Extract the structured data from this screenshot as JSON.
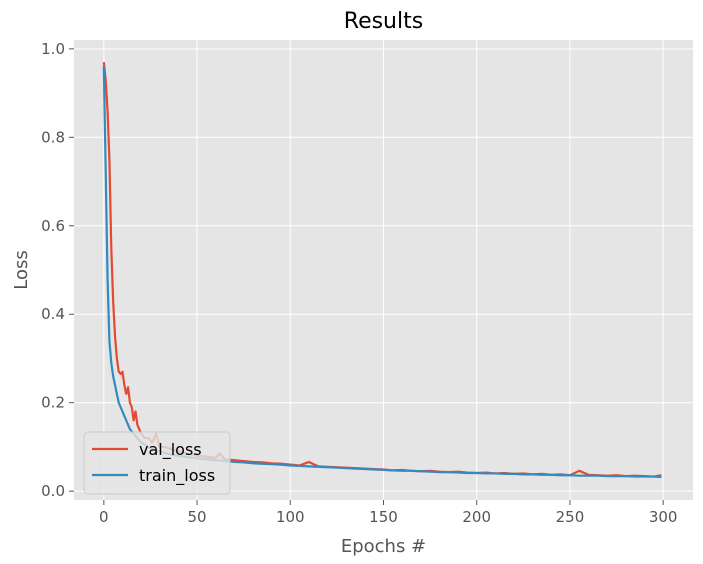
{
  "chart_data": {
    "type": "line",
    "title": "Results",
    "xlabel": "Epochs #",
    "ylabel": "Loss",
    "xlim": [
      -16,
      316
    ],
    "ylim": [
      -0.02,
      1.02
    ],
    "xticks": [
      0,
      50,
      100,
      150,
      200,
      250,
      300
    ],
    "yticks": [
      0.0,
      0.2,
      0.4,
      0.6,
      0.8,
      1.0
    ],
    "xtick_labels": [
      "0",
      "50",
      "100",
      "150",
      "200",
      "250",
      "300"
    ],
    "ytick_labels": [
      "0.0",
      "0.2",
      "0.4",
      "0.6",
      "0.8",
      "1.0"
    ],
    "grid": true,
    "legend_position": "bottom-left",
    "series": [
      {
        "name": "val_loss",
        "color": "#E24A33",
        "points": [
          [
            0,
            0.97
          ],
          [
            1,
            0.93
          ],
          [
            2,
            0.86
          ],
          [
            3,
            0.75
          ],
          [
            4,
            0.55
          ],
          [
            5,
            0.43
          ],
          [
            6,
            0.35
          ],
          [
            7,
            0.3
          ],
          [
            8,
            0.27
          ],
          [
            9,
            0.265
          ],
          [
            10,
            0.27
          ],
          [
            11,
            0.24
          ],
          [
            12,
            0.22
          ],
          [
            13,
            0.235
          ],
          [
            14,
            0.2
          ],
          [
            15,
            0.19
          ],
          [
            16,
            0.16
          ],
          [
            17,
            0.18
          ],
          [
            18,
            0.15
          ],
          [
            19,
            0.14
          ],
          [
            20,
            0.13
          ],
          [
            22,
            0.12
          ],
          [
            24,
            0.12
          ],
          [
            26,
            0.11
          ],
          [
            28,
            0.13
          ],
          [
            30,
            0.1
          ],
          [
            33,
            0.1
          ],
          [
            36,
            0.095
          ],
          [
            40,
            0.09
          ],
          [
            45,
            0.085
          ],
          [
            50,
            0.08
          ],
          [
            55,
            0.078
          ],
          [
            60,
            0.075
          ],
          [
            62,
            0.085
          ],
          [
            65,
            0.072
          ],
          [
            70,
            0.07
          ],
          [
            75,
            0.068
          ],
          [
            80,
            0.066
          ],
          [
            85,
            0.065
          ],
          [
            90,
            0.063
          ],
          [
            95,
            0.062
          ],
          [
            100,
            0.06
          ],
          [
            105,
            0.058
          ],
          [
            110,
            0.066
          ],
          [
            115,
            0.056
          ],
          [
            120,
            0.055
          ],
          [
            125,
            0.054
          ],
          [
            130,
            0.053
          ],
          [
            135,
            0.052
          ],
          [
            140,
            0.051
          ],
          [
            145,
            0.05
          ],
          [
            150,
            0.049
          ],
          [
            155,
            0.047
          ],
          [
            160,
            0.048
          ],
          [
            165,
            0.046
          ],
          [
            170,
            0.045
          ],
          [
            175,
            0.046
          ],
          [
            180,
            0.044
          ],
          [
            185,
            0.043
          ],
          [
            190,
            0.044
          ],
          [
            195,
            0.042
          ],
          [
            200,
            0.041
          ],
          [
            205,
            0.042
          ],
          [
            210,
            0.04
          ],
          [
            215,
            0.041
          ],
          [
            220,
            0.039
          ],
          [
            225,
            0.04
          ],
          [
            230,
            0.038
          ],
          [
            235,
            0.039
          ],
          [
            240,
            0.037
          ],
          [
            245,
            0.038
          ],
          [
            250,
            0.036
          ],
          [
            255,
            0.046
          ],
          [
            260,
            0.037
          ],
          [
            265,
            0.036
          ],
          [
            270,
            0.035
          ],
          [
            275,
            0.036
          ],
          [
            280,
            0.034
          ],
          [
            285,
            0.035
          ],
          [
            290,
            0.034
          ],
          [
            295,
            0.033
          ],
          [
            299,
            0.036
          ]
        ]
      },
      {
        "name": "train_loss",
        "color": "#348ABD",
        "points": [
          [
            0,
            0.96
          ],
          [
            1,
            0.72
          ],
          [
            2,
            0.48
          ],
          [
            3,
            0.34
          ],
          [
            4,
            0.29
          ],
          [
            5,
            0.26
          ],
          [
            6,
            0.24
          ],
          [
            7,
            0.22
          ],
          [
            8,
            0.2
          ],
          [
            9,
            0.19
          ],
          [
            10,
            0.18
          ],
          [
            11,
            0.17
          ],
          [
            12,
            0.16
          ],
          [
            13,
            0.15
          ],
          [
            14,
            0.14
          ],
          [
            15,
            0.135
          ],
          [
            16,
            0.13
          ],
          [
            17,
            0.125
          ],
          [
            18,
            0.12
          ],
          [
            19,
            0.115
          ],
          [
            20,
            0.11
          ],
          [
            22,
            0.105
          ],
          [
            24,
            0.1
          ],
          [
            26,
            0.095
          ],
          [
            28,
            0.092
          ],
          [
            30,
            0.09
          ],
          [
            33,
            0.086
          ],
          [
            36,
            0.083
          ],
          [
            40,
            0.08
          ],
          [
            45,
            0.077
          ],
          [
            50,
            0.074
          ],
          [
            55,
            0.072
          ],
          [
            60,
            0.07
          ],
          [
            65,
            0.068
          ],
          [
            70,
            0.066
          ],
          [
            75,
            0.065
          ],
          [
            80,
            0.063
          ],
          [
            85,
            0.062
          ],
          [
            90,
            0.061
          ],
          [
            95,
            0.06
          ],
          [
            100,
            0.058
          ],
          [
            105,
            0.057
          ],
          [
            110,
            0.056
          ],
          [
            115,
            0.055
          ],
          [
            120,
            0.054
          ],
          [
            125,
            0.053
          ],
          [
            130,
            0.052
          ],
          [
            135,
            0.051
          ],
          [
            140,
            0.05
          ],
          [
            145,
            0.049
          ],
          [
            150,
            0.048
          ],
          [
            155,
            0.047
          ],
          [
            160,
            0.046
          ],
          [
            165,
            0.046
          ],
          [
            170,
            0.045
          ],
          [
            175,
            0.044
          ],
          [
            180,
            0.043
          ],
          [
            185,
            0.043
          ],
          [
            190,
            0.042
          ],
          [
            195,
            0.041
          ],
          [
            200,
            0.041
          ],
          [
            205,
            0.04
          ],
          [
            210,
            0.04
          ],
          [
            215,
            0.039
          ],
          [
            220,
            0.039
          ],
          [
            225,
            0.038
          ],
          [
            230,
            0.038
          ],
          [
            235,
            0.037
          ],
          [
            240,
            0.037
          ],
          [
            245,
            0.036
          ],
          [
            250,
            0.036
          ],
          [
            255,
            0.035
          ],
          [
            260,
            0.035
          ],
          [
            265,
            0.035
          ],
          [
            270,
            0.034
          ],
          [
            275,
            0.034
          ],
          [
            280,
            0.034
          ],
          [
            285,
            0.033
          ],
          [
            290,
            0.033
          ],
          [
            295,
            0.033
          ],
          [
            299,
            0.032
          ]
        ]
      }
    ]
  }
}
